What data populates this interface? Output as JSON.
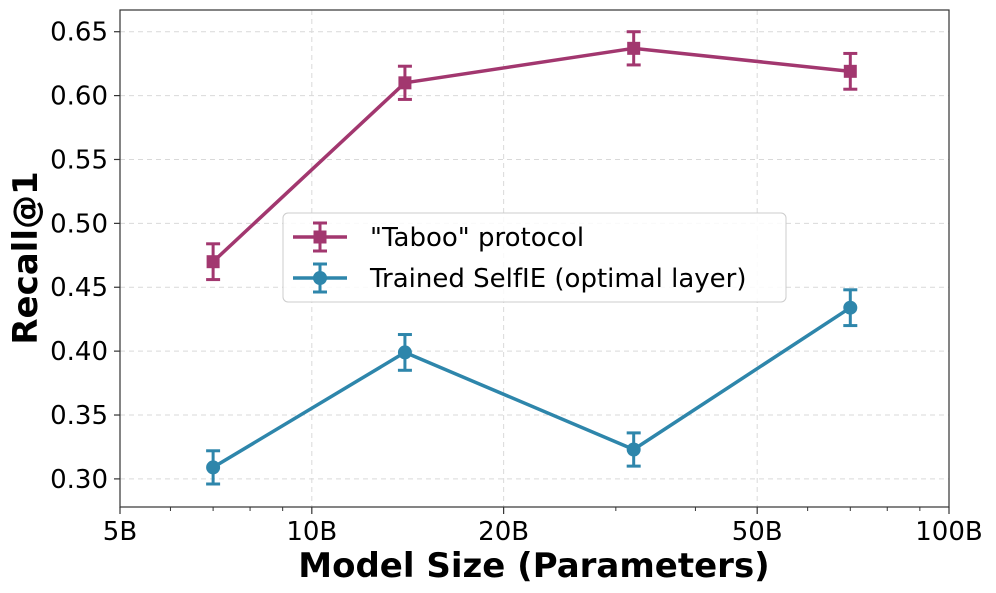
{
  "chart_data": {
    "type": "line",
    "title": "",
    "xlabel": "Model Size (Parameters)",
    "ylabel": "Recall@1",
    "xscale": "log",
    "xlim": [
      5,
      100
    ],
    "ylim": [
      0.278,
      0.667
    ],
    "x_ticks": [
      5,
      10,
      20,
      50,
      100
    ],
    "x_tick_labels": [
      "5B",
      "10B",
      "20B",
      "50B",
      "100B"
    ],
    "y_ticks": [
      0.3,
      0.35,
      0.4,
      0.45,
      0.5,
      0.55,
      0.6,
      0.65
    ],
    "y_tick_labels": [
      "0.30",
      "0.35",
      "0.40",
      "0.45",
      "0.50",
      "0.55",
      "0.60",
      "0.65"
    ],
    "grid": true,
    "legend_position": "center",
    "x": [
      7,
      14,
      32,
      70
    ],
    "series": [
      {
        "name": "\"Taboo\" protocol",
        "color": "#a2376f",
        "marker": "square",
        "values": [
          0.47,
          0.61,
          0.637,
          0.619
        ],
        "errors": [
          0.014,
          0.013,
          0.013,
          0.014
        ]
      },
      {
        "name": "Trained SelfIE (optimal layer)",
        "color": "#2e86ab",
        "marker": "circle",
        "values": [
          0.309,
          0.399,
          0.323,
          0.434
        ],
        "errors": [
          0.013,
          0.014,
          0.013,
          0.014
        ]
      }
    ]
  }
}
